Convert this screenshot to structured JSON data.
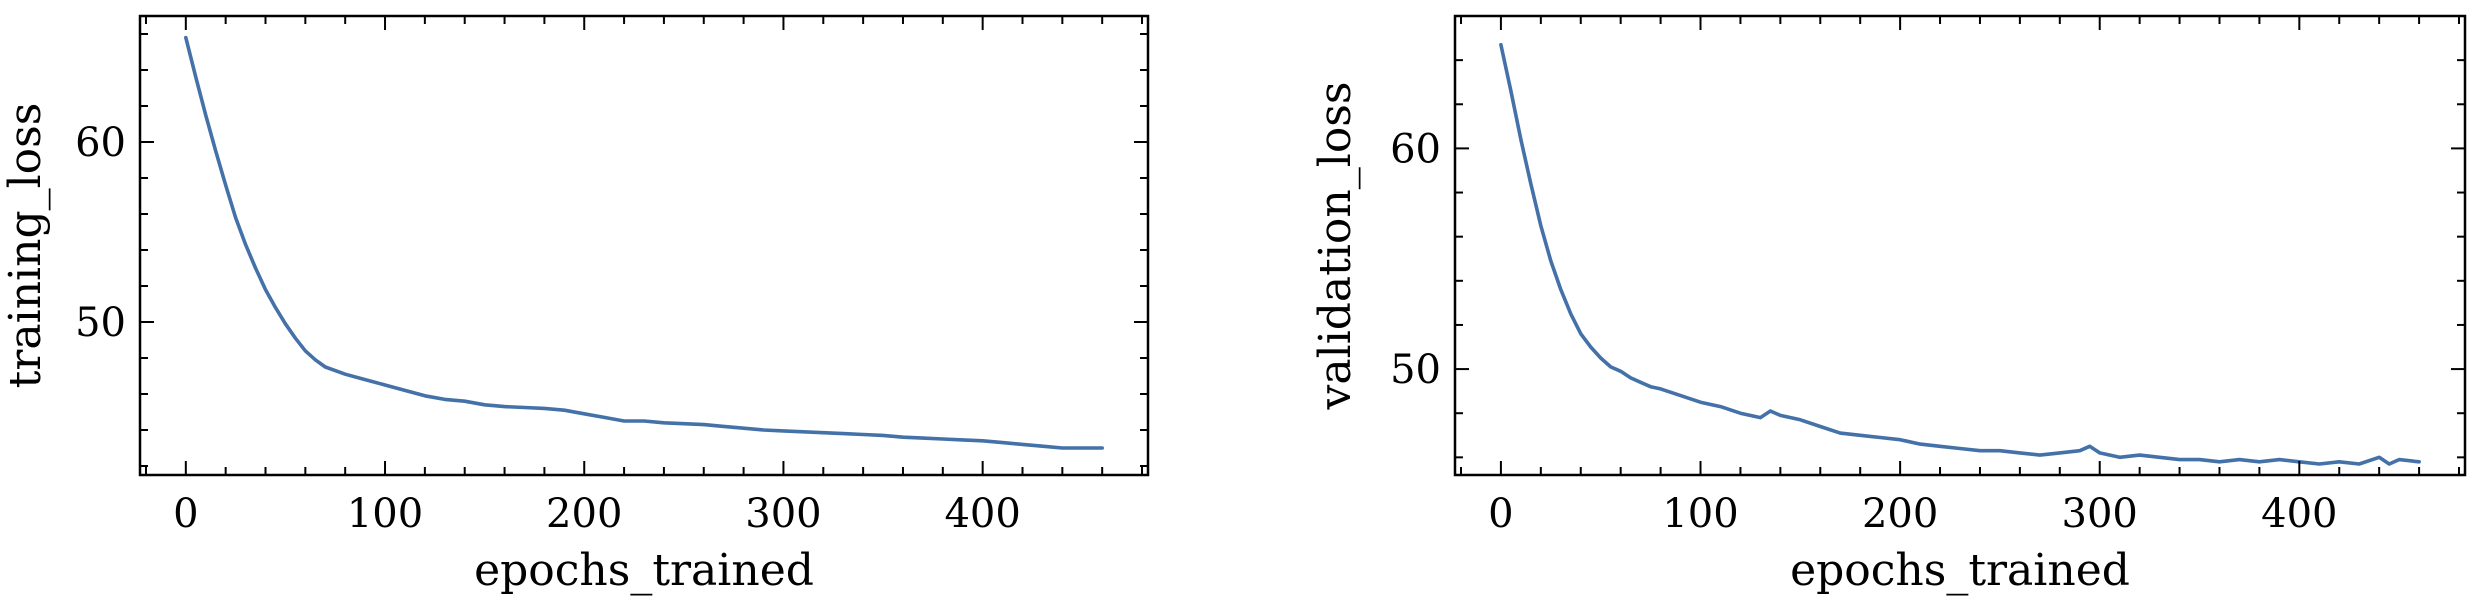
{
  "colors": {
    "series": "#4472a8",
    "axes": "#000000"
  },
  "chart_data": [
    {
      "type": "line",
      "title": "",
      "xlabel": "epochs_trained",
      "ylabel": "training_loss",
      "xlim": [
        -23,
        483
      ],
      "ylim": [
        41.5,
        67.0
      ],
      "xticks": [
        0,
        100,
        200,
        300,
        400
      ],
      "xtick_labels": [
        "0",
        "100",
        "200",
        "300",
        "400"
      ],
      "yticks": [
        50,
        60
      ],
      "ytick_labels": [
        "50",
        "60"
      ],
      "x_minor_step": 20,
      "y_minor_step": 2,
      "grid": false,
      "series": [
        {
          "x": [
            0,
            5,
            10,
            15,
            20,
            25,
            30,
            35,
            40,
            45,
            50,
            55,
            60,
            65,
            70,
            75,
            80,
            90,
            100,
            110,
            120,
            130,
            140,
            150,
            160,
            170,
            180,
            190,
            200,
            210,
            220,
            230,
            240,
            250,
            260,
            270,
            280,
            290,
            300,
            310,
            320,
            330,
            340,
            350,
            360,
            370,
            380,
            390,
            400,
            410,
            420,
            430,
            440,
            450,
            460
          ],
          "y": [
            65.8,
            63.6,
            61.5,
            59.5,
            57.6,
            55.8,
            54.3,
            53.0,
            51.8,
            50.8,
            49.9,
            49.1,
            48.4,
            47.9,
            47.5,
            47.3,
            47.1,
            46.8,
            46.5,
            46.2,
            45.9,
            45.7,
            45.6,
            45.4,
            45.3,
            45.25,
            45.2,
            45.1,
            44.9,
            44.7,
            44.5,
            44.5,
            44.4,
            44.35,
            44.3,
            44.2,
            44.1,
            44.0,
            43.95,
            43.9,
            43.85,
            43.8,
            43.75,
            43.7,
            43.6,
            43.55,
            43.5,
            43.45,
            43.4,
            43.3,
            43.2,
            43.1,
            43.0,
            43.0,
            43.0
          ]
        }
      ]
    },
    {
      "type": "line",
      "title": "",
      "xlabel": "epochs_trained",
      "ylabel": "validation_loss",
      "xlim": [
        -23,
        483
      ],
      "ylim": [
        45.2,
        66.0
      ],
      "xticks": [
        0,
        100,
        200,
        300,
        400
      ],
      "xtick_labels": [
        "0",
        "100",
        "200",
        "300",
        "400"
      ],
      "yticks": [
        50,
        60
      ],
      "ytick_labels": [
        "50",
        "60"
      ],
      "x_minor_step": 20,
      "y_minor_step": 2,
      "grid": false,
      "series": [
        {
          "x": [
            0,
            5,
            10,
            15,
            20,
            25,
            30,
            35,
            40,
            45,
            50,
            55,
            60,
            65,
            70,
            75,
            80,
            90,
            100,
            110,
            120,
            130,
            135,
            140,
            150,
            160,
            170,
            180,
            190,
            200,
            210,
            220,
            230,
            240,
            250,
            260,
            270,
            280,
            290,
            295,
            300,
            310,
            320,
            330,
            340,
            350,
            360,
            370,
            380,
            390,
            400,
            410,
            420,
            430,
            440,
            445,
            450,
            460
          ],
          "y": [
            64.7,
            62.6,
            60.4,
            58.4,
            56.5,
            54.9,
            53.6,
            52.5,
            51.6,
            51.0,
            50.5,
            50.1,
            49.9,
            49.6,
            49.4,
            49.2,
            49.1,
            48.8,
            48.5,
            48.3,
            48.0,
            47.8,
            48.1,
            47.9,
            47.7,
            47.4,
            47.1,
            47.0,
            46.9,
            46.8,
            46.6,
            46.5,
            46.4,
            46.3,
            46.3,
            46.2,
            46.1,
            46.2,
            46.3,
            46.5,
            46.2,
            46.0,
            46.1,
            46.0,
            45.9,
            45.9,
            45.8,
            45.9,
            45.8,
            45.9,
            45.8,
            45.7,
            45.8,
            45.7,
            46.0,
            45.7,
            45.9,
            45.8
          ]
        }
      ]
    }
  ]
}
